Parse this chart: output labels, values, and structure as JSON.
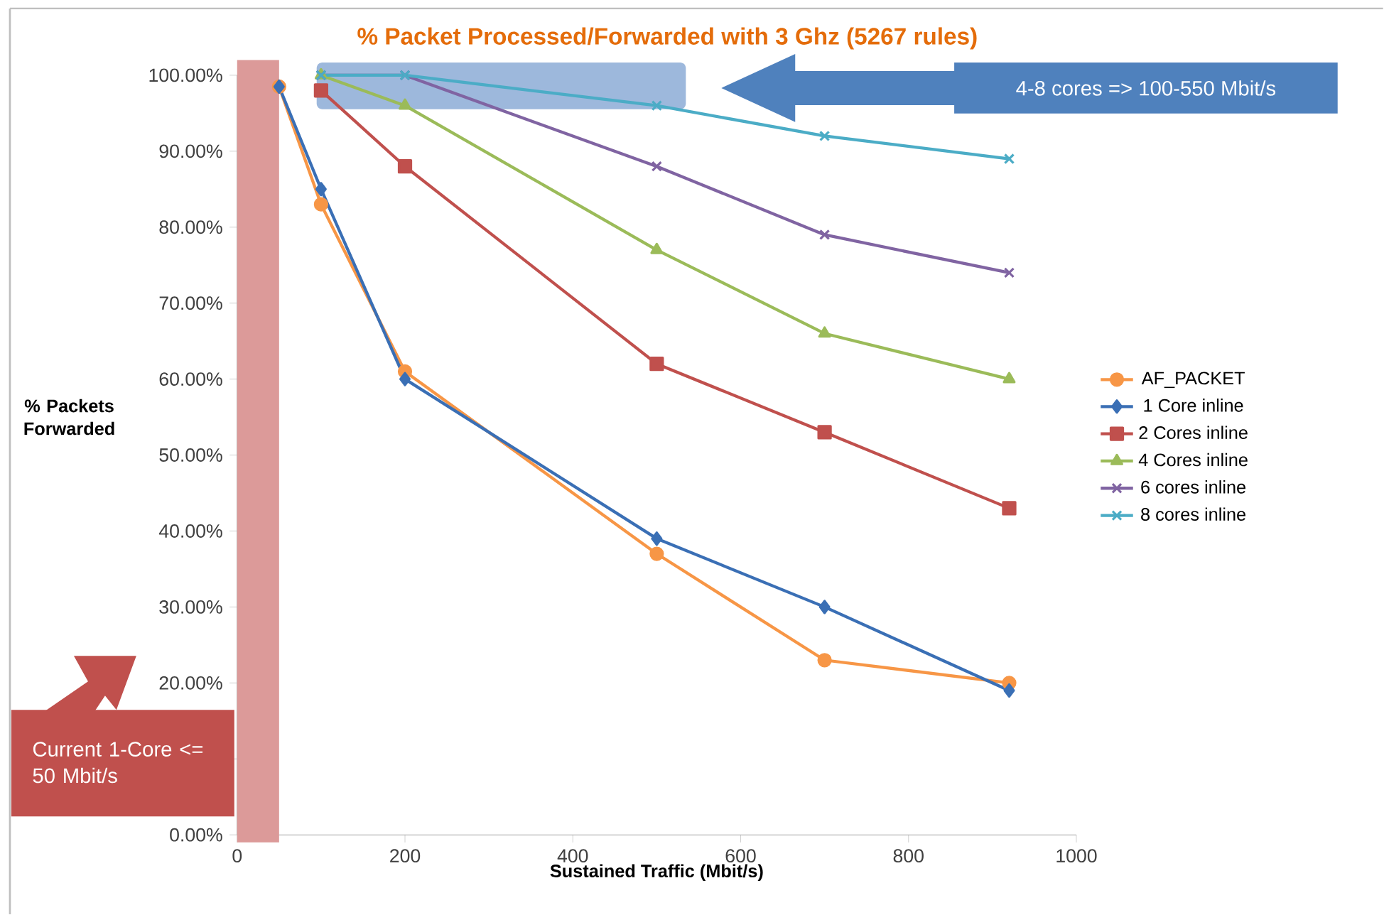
{
  "chart_data": {
    "type": "line",
    "title": "% Packet Processed/Forwarded with 3 Ghz (5267 rules)",
    "xlabel": "Sustained Traffic (Mbit/s)",
    "ylabel": "% Packets Forwarded",
    "xlim": [
      0,
      1000
    ],
    "xticks": [
      0,
      200,
      400,
      600,
      800,
      1000
    ],
    "ylim": [
      0,
      100
    ],
    "yticks": [
      {
        "value": 0,
        "label": "0.00%"
      },
      {
        "value": 10,
        "label": null
      },
      {
        "value": 20,
        "label": "20.00%"
      },
      {
        "value": 30,
        "label": "30.00%"
      },
      {
        "value": 40,
        "label": "40.00%"
      },
      {
        "value": 50,
        "label": "50.00%"
      },
      {
        "value": 60,
        "label": "60.00%"
      },
      {
        "value": 70,
        "label": "70.00%"
      },
      {
        "value": 80,
        "label": "80.00%"
      },
      {
        "value": 90,
        "label": "90.00%"
      },
      {
        "value": 100,
        "label": "100.00%"
      }
    ],
    "grid": false,
    "legend": "right",
    "line_style": "solid",
    "series": [
      {
        "name": "AF_PACKET",
        "color": "#f79646",
        "marker": "circle",
        "x": [
          50,
          100,
          200,
          500,
          700,
          920
        ],
        "values": [
          98.5,
          83,
          61,
          37,
          23,
          20
        ]
      },
      {
        "name": "1 Core inline",
        "color": "#3a6fb5",
        "marker": "diamond",
        "x": [
          50,
          100,
          200,
          500,
          700,
          920
        ],
        "values": [
          98.5,
          85,
          60,
          39,
          30,
          19
        ]
      },
      {
        "name": "2 Cores inline",
        "color": "#c0504d",
        "marker": "square",
        "x": [
          100,
          200,
          500,
          700,
          920
        ],
        "values": [
          98,
          88,
          62,
          53,
          43
        ]
      },
      {
        "name": "4 Cores inline",
        "color": "#9bbb59",
        "marker": "triangle",
        "x": [
          100,
          200,
          500,
          700,
          920
        ],
        "values": [
          100,
          96,
          77,
          66,
          60
        ]
      },
      {
        "name": "6 cores inline",
        "color": "#8064a2",
        "marker": "cross",
        "x": [
          100,
          200,
          500,
          700,
          920
        ],
        "values": [
          100,
          100,
          88,
          79,
          74
        ]
      },
      {
        "name": "8 cores inline",
        "color": "#4bacc6",
        "marker": "cross",
        "x": [
          100,
          200,
          500,
          700,
          920
        ],
        "values": [
          100,
          100,
          96,
          92,
          89
        ]
      }
    ],
    "bands": [
      {
        "axis": "x",
        "from": 0,
        "to": 50,
        "color": "#dc9a99"
      }
    ],
    "annotations": [
      "4-8 cores => 100-550 Mbit/s",
      "Current 1-Core <= 50 Mbit/s"
    ]
  }
}
